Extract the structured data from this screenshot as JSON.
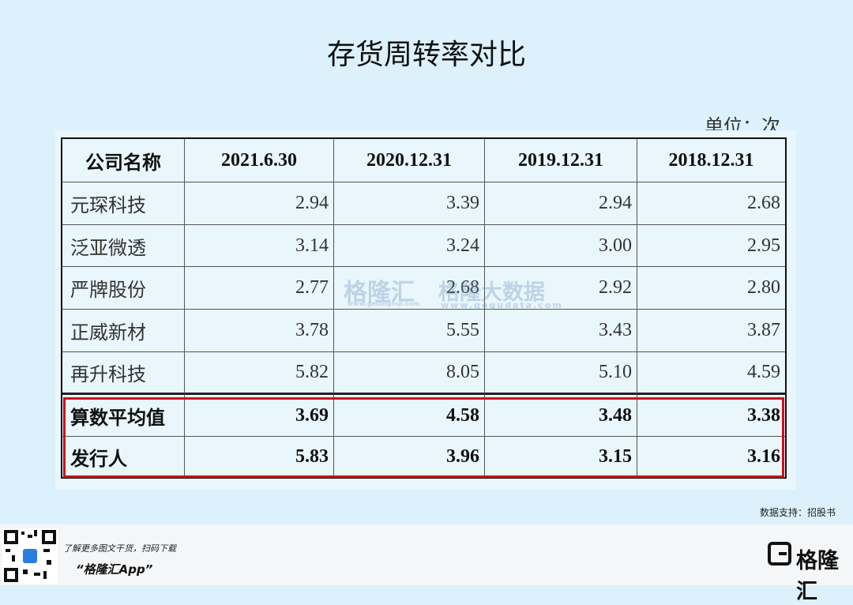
{
  "header": {
    "title": "存货周转率对比",
    "unit": "单位：次"
  },
  "table": {
    "header": [
      "公司名称",
      "2021.6.30",
      "2020.12.31",
      "2019.12.31",
      "2018.12.31"
    ],
    "rows": [
      [
        "元琛科技",
        "2.94",
        "3.39",
        "2.94",
        "2.68"
      ],
      [
        "泛亚微透",
        "3.14",
        "3.24",
        "3.00",
        "2.95"
      ],
      [
        "严牌股份",
        "2.77",
        "2.68",
        "2.92",
        "2.80"
      ],
      [
        "正威新材",
        "3.78",
        "5.55",
        "3.43",
        "3.87"
      ],
      [
        "再升科技",
        "5.82",
        "8.05",
        "5.10",
        "4.59"
      ],
      [
        "算数平均值",
        "3.69",
        "4.58",
        "3.48",
        "3.38"
      ],
      [
        "发行人",
        "5.83",
        "3.96",
        "3.15",
        "3.16"
      ]
    ],
    "highlighted_rows": [
      5,
      6
    ]
  },
  "watermark": {
    "brand": "格隆汇",
    "brand_url": "www.gelonghui.com",
    "data_brand": "格隆大数据",
    "data_url": "www.gogudata.com"
  },
  "source": "数据支持：招股书",
  "footer": {
    "prompt": "了解更多图文干货，扫码下载",
    "app": "“格隆汇App”",
    "logo": "格隆汇"
  }
}
